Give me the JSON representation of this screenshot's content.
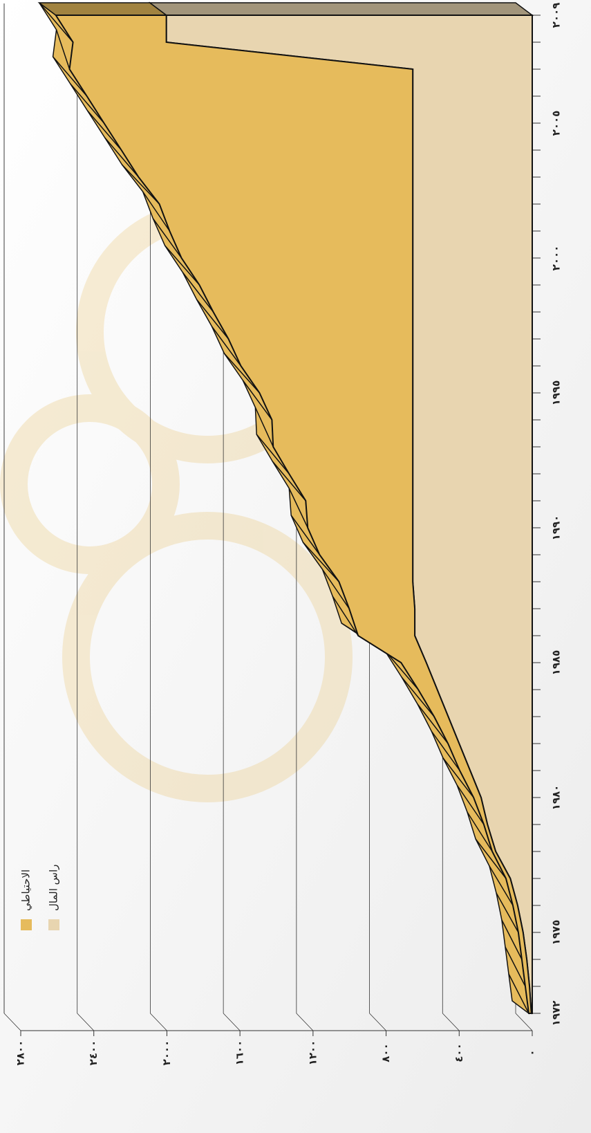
{
  "chart_data": {
    "type": "stacked-area-3d",
    "x": [
      1972,
      1973,
      1974,
      1975,
      1976,
      1977,
      1978,
      1979,
      1980,
      1981,
      1982,
      1983,
      1984,
      1985,
      1986,
      1987,
      1988,
      1989,
      1990,
      1991,
      1992,
      1993,
      1994,
      1995,
      1996,
      1997,
      1998,
      1999,
      2000,
      2001,
      2002,
      2003,
      2004,
      2005,
      2006,
      2007,
      2008,
      2009
    ],
    "xlim": [
      1972,
      2009
    ],
    "xticks": [
      {
        "value": 1972,
        "label": "١٩٧٢"
      },
      {
        "value": 1975,
        "label": "١٩٧٥"
      },
      {
        "value": 1980,
        "label": "١٩٨٠"
      },
      {
        "value": 1985,
        "label": "١٩٨٥"
      },
      {
        "value": 1990,
        "label": "١٩٩٠"
      },
      {
        "value": 1995,
        "label": "١٩٩٥"
      },
      {
        "value": 2000,
        "label": "٢٠٠٠"
      },
      {
        "value": 2005,
        "label": "٢٠٠٥"
      },
      {
        "value": 2009,
        "label": "٢٠٠٩"
      }
    ],
    "ylim": [
      0,
      2800
    ],
    "yticks": [
      {
        "value": 0,
        "label": "٠"
      },
      {
        "value": 400,
        "label": "٤٠٠"
      },
      {
        "value": 800,
        "label": "٨٠٠"
      },
      {
        "value": 1200,
        "label": "١٢٠٠"
      },
      {
        "value": 1600,
        "label": "١٦٠٠"
      },
      {
        "value": 2000,
        "label": "٢٠٠٠"
      },
      {
        "value": 2400,
        "label": "٢٤٠٠"
      },
      {
        "value": 2800,
        "label": "٢٨٠٠"
      }
    ],
    "grid": true,
    "legend": "top-left",
    "series": [
      {
        "name": "الاحتياطي",
        "color": "#e6bb5c",
        "values": [
          14,
          23,
          27,
          26,
          26,
          24,
          19,
          20,
          41,
          57,
          61,
          77,
          104,
          138,
          310,
          359,
          404,
          510,
          575,
          586,
          677,
          764,
          771,
          839,
          941,
          1009,
          1092,
          1168,
          1266,
          1331,
          1387,
          1501,
          1595,
          1690,
          1784,
          1879,
          511,
          605
        ]
      },
      {
        "name": "راس المال",
        "color": "#e8d5b0",
        "values": [
          5,
          15,
          30,
          50,
          80,
          120,
          200,
          245,
          280,
          340,
          400,
          460,
          520,
          580,
          643,
          643,
          654,
          654,
          654,
          654,
          654,
          654,
          654,
          654,
          654,
          654,
          654,
          654,
          654,
          654,
          654,
          654,
          654,
          654,
          654,
          654,
          2003,
          2003
        ]
      }
    ]
  }
}
